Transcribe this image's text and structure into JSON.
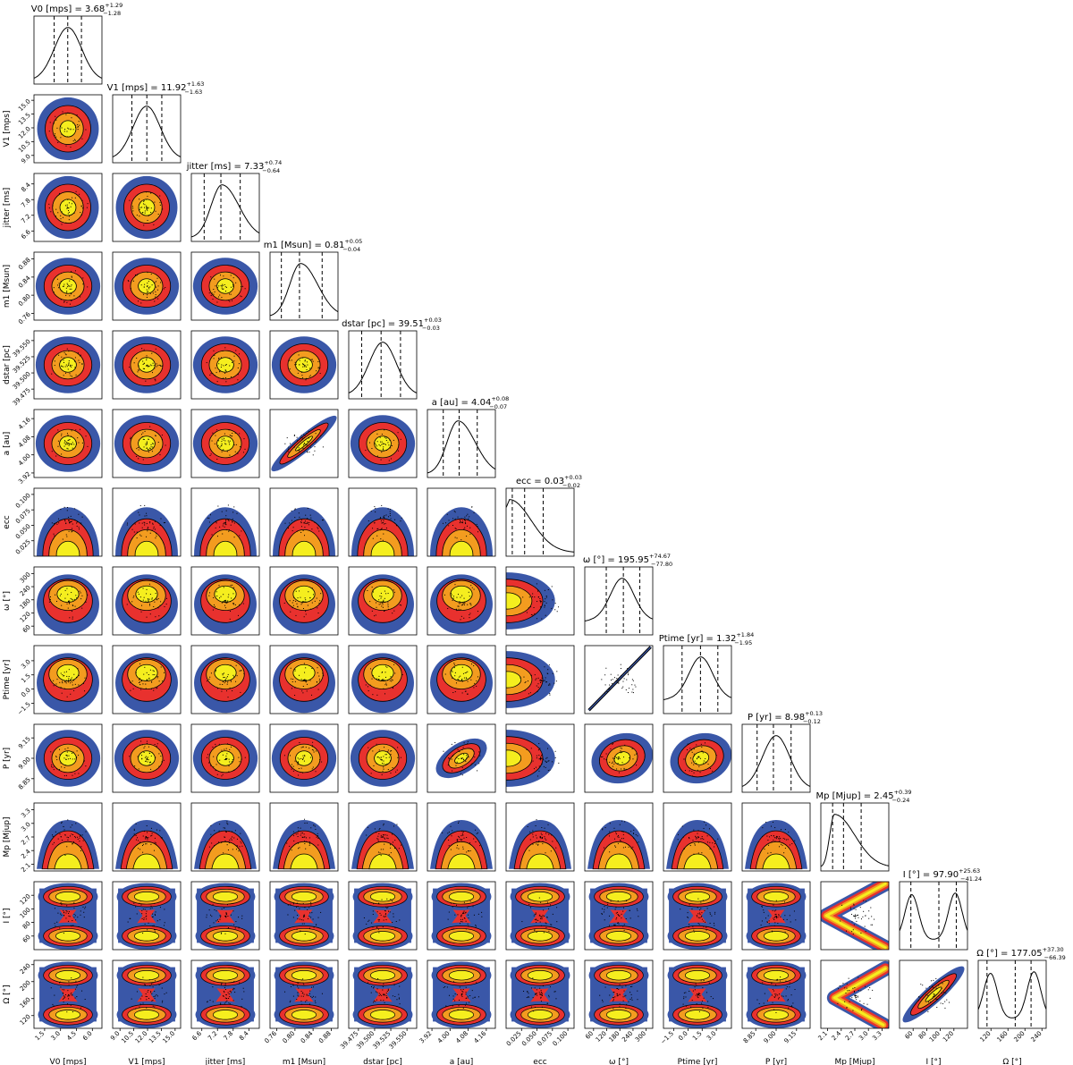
{
  "chart_data": {
    "type": "corner",
    "levels_colors": [
      "#3a57a8",
      "#e8312e",
      "#f39c1f",
      "#f5ee1e"
    ],
    "contour_color": "#000000",
    "parameters": [
      {
        "key": "V0",
        "label": "V0 [mps]",
        "short": "V0",
        "median": "3.68",
        "plus": "+1.29",
        "minus": "−1.28",
        "ticks": [
          "1.5",
          "3.0",
          "4.5",
          "6.0"
        ],
        "range": [
          0.5,
          6.9
        ],
        "quantiles": [
          2.4,
          3.68,
          4.97
        ],
        "profile": "gauss"
      },
      {
        "key": "V1",
        "label": "V1 [mps]",
        "short": "V1",
        "median": "11.92",
        "plus": "+1.63",
        "minus": "−1.63",
        "ticks": [
          "9.0",
          "10.5",
          "12.0",
          "13.5",
          "15.0"
        ],
        "range": [
          8.2,
          15.6
        ],
        "quantiles": [
          10.29,
          11.92,
          13.55
        ],
        "profile": "gauss"
      },
      {
        "key": "jitter",
        "label": "jitter [ms]",
        "short": "jitter",
        "median": "7.33",
        "plus": "+0.74",
        "minus": "−0.64",
        "ticks": [
          "6.6",
          "7.2",
          "7.8",
          "8.4"
        ],
        "range": [
          6.2,
          8.8
        ],
        "quantiles": [
          6.69,
          7.33,
          8.07
        ],
        "profile": "skew"
      },
      {
        "key": "m1",
        "label": "m1 [Msun]",
        "short": "m1",
        "median": "0.81",
        "plus": "+0.05",
        "minus": "−0.04",
        "ticks": [
          "0.76",
          "0.80",
          "0.84",
          "0.88"
        ],
        "range": [
          0.745,
          0.895
        ],
        "quantiles": [
          0.77,
          0.81,
          0.86
        ],
        "profile": "skew"
      },
      {
        "key": "dstar",
        "label": "dstar [pc]",
        "short": "dstar",
        "median": "39.51",
        "plus": "+0.03",
        "minus": "−0.03",
        "ticks": [
          "39.475",
          "39.500",
          "39.525",
          "39.550"
        ],
        "range": [
          39.46,
          39.565
        ],
        "quantiles": [
          39.48,
          39.51,
          39.54
        ],
        "profile": "gauss"
      },
      {
        "key": "a",
        "label": "a [au]",
        "short": "a",
        "median": "4.04",
        "plus": "+0.08",
        "minus": "−0.07",
        "ticks": [
          "3.92",
          "4.00",
          "4.08",
          "4.16"
        ],
        "range": [
          3.9,
          4.2
        ],
        "quantiles": [
          3.97,
          4.04,
          4.12
        ],
        "profile": "skew"
      },
      {
        "key": "ecc",
        "label": "ecc",
        "short": "ecc",
        "median": "0.03",
        "plus": "+0.03",
        "minus": "−0.02",
        "ticks": [
          "0.025",
          "0.050",
          "0.075",
          "0.100"
        ],
        "range": [
          0.0,
          0.11
        ],
        "quantiles": [
          0.01,
          0.03,
          0.06
        ],
        "profile": "decay"
      },
      {
        "key": "omega",
        "label": "ω [°]",
        "short": "ω",
        "median": "195.95",
        "plus": "+74.67",
        "minus": "−77.80",
        "ticks": [
          "60",
          "120",
          "180",
          "240",
          "300"
        ],
        "range": [
          20,
          330
        ],
        "quantiles": [
          118,
          196,
          271
        ],
        "profile": "peak"
      },
      {
        "key": "Ptime",
        "label": "Ptime [yr]",
        "short": "Ptime",
        "median": "1.32",
        "plus": "+1.84",
        "minus": "−1.95",
        "ticks": [
          "−1.5",
          "0.0",
          "1.5",
          "3.0"
        ],
        "range": [
          -2.6,
          4.6
        ],
        "quantiles": [
          -0.63,
          1.32,
          3.16
        ],
        "profile": "peak"
      },
      {
        "key": "P",
        "label": "P [yr]",
        "short": "P",
        "median": "8.98",
        "plus": "+0.13",
        "minus": "−0.12",
        "ticks": [
          "8.85",
          "9.00",
          "9.15"
        ],
        "range": [
          8.75,
          9.25
        ],
        "quantiles": [
          8.86,
          8.98,
          9.11
        ],
        "profile": "gauss"
      },
      {
        "key": "Mp",
        "label": "Mp [Mjup]",
        "short": "Mp",
        "median": "2.45",
        "plus": "+0.39",
        "minus": "−0.24",
        "ticks": [
          "2.1",
          "2.4",
          "2.7",
          "3.0",
          "3.3"
        ],
        "range": [
          1.95,
          3.45
        ],
        "quantiles": [
          2.21,
          2.45,
          2.84
        ],
        "profile": "decay2"
      },
      {
        "key": "I",
        "label": "I [°]",
        "short": "I",
        "median": "97.90",
        "plus": "+25.63",
        "minus": "−41.24",
        "ticks": [
          "60",
          "80",
          "100",
          "120"
        ],
        "range": [
          40,
          140
        ],
        "quantiles": [
          56.7,
          97.9,
          123.5
        ],
        "profile": "bimodal"
      },
      {
        "key": "Omega",
        "label": "Ω [°]",
        "short": "Ω",
        "median": "177.05",
        "plus": "+37.30",
        "minus": "−66.39",
        "ticks": [
          "120",
          "160",
          "200",
          "240"
        ],
        "range": [
          90,
          250
        ],
        "quantiles": [
          110.7,
          177.1,
          214.4
        ],
        "profile": "bimodal"
      }
    ]
  }
}
